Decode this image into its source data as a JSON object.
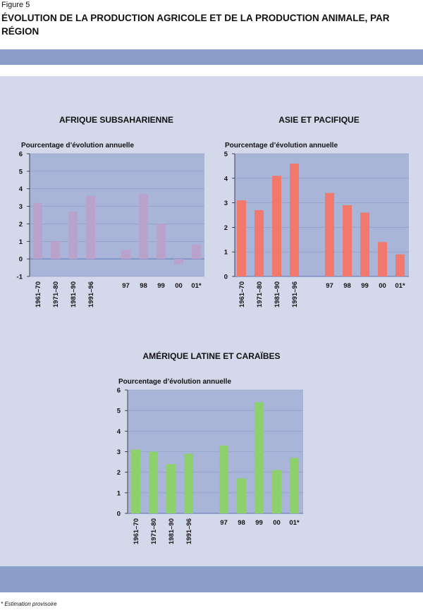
{
  "figure": {
    "label": "Figure 5",
    "title": "ÉVOLUTION DE LA PRODUCTION AGRICOLE ET DE LA PRODUCTION ANIMALE, PAR RÉGION",
    "footnote": "* Estimation provisoire"
  },
  "colors": {
    "band": "#8a9ec9",
    "panel": "#d3d8ea",
    "plot": "#a8b5d8",
    "grid": "#8c9bc8"
  },
  "chart_data": [
    {
      "type": "bar",
      "title": "AFRIQUE SUBSAHARIENNE",
      "ylabel": "Pourcentage d’évolution annuelle",
      "categories": [
        "1961–70",
        "1971–80",
        "1981–90",
        "1991–96",
        "",
        "97",
        "98",
        "99",
        "00",
        "01*"
      ],
      "values": [
        3.2,
        1.0,
        2.7,
        3.6,
        null,
        0.5,
        3.7,
        2.0,
        -0.3,
        0.8
      ],
      "ylim": [
        -1,
        6
      ],
      "yticks": [
        -1,
        0,
        1,
        2,
        3,
        4,
        5,
        6
      ],
      "color": "#b9a3cc"
    },
    {
      "type": "bar",
      "title": "ASIE ET PACIFIQUE",
      "ylabel": "Pourcentage d’évolution annuelle",
      "categories": [
        "1961–70",
        "1971–80",
        "1981–90",
        "1991–96",
        "",
        "97",
        "98",
        "99",
        "00",
        "01*"
      ],
      "values": [
        3.1,
        2.7,
        4.1,
        4.6,
        null,
        3.4,
        2.9,
        2.6,
        1.4,
        0.9
      ],
      "ylim": [
        0,
        5
      ],
      "yticks": [
        0,
        1,
        2,
        3,
        4,
        5
      ],
      "color": "#f0786c"
    },
    {
      "type": "bar",
      "title": "AMÉRIQUE LATINE ET CARAÏBES",
      "ylabel": "Pourcentage d’évolution annuelle",
      "categories": [
        "1961–70",
        "1971–80",
        "1981–90",
        "1991–96",
        "",
        "97",
        "98",
        "99",
        "00",
        "01*"
      ],
      "values": [
        3.1,
        3.0,
        2.4,
        2.9,
        null,
        3.3,
        1.7,
        5.4,
        2.1,
        2.7
      ],
      "ylim": [
        0,
        6
      ],
      "yticks": [
        0,
        1,
        2,
        3,
        4,
        5,
        6
      ],
      "color": "#8ecf6e"
    }
  ]
}
